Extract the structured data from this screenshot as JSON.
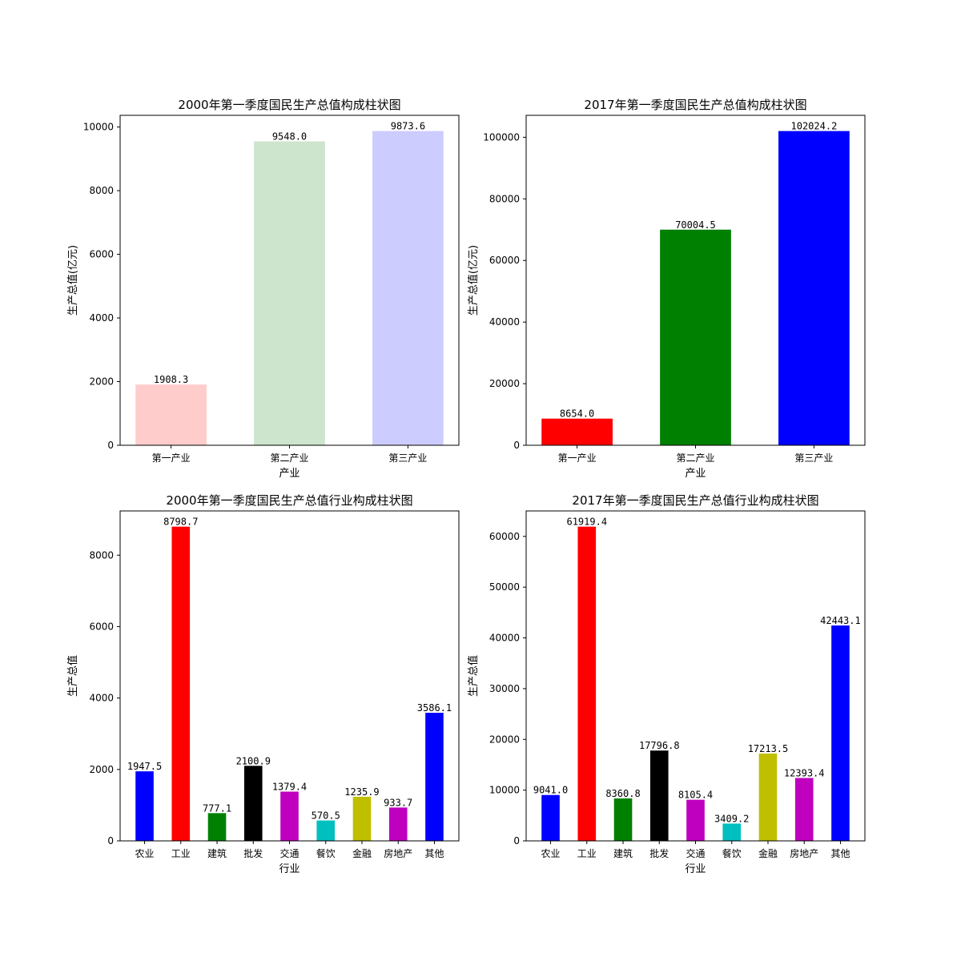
{
  "chart_data": [
    {
      "type": "bar",
      "title": "2000年第一季度国民生产总值构成柱状图",
      "xlabel": "产业",
      "ylabel": "生产总值(亿元)",
      "categories": [
        "第一产业",
        "第二产业",
        "第三产业"
      ],
      "values": [
        1908.3,
        9548.0,
        9873.6
      ],
      "data_labels": [
        "1908.3",
        "9548.0",
        "9873.6"
      ],
      "colors": [
        "#ffcccc",
        "#cce5cc",
        "#ccccff"
      ],
      "ylim": [
        0,
        10367
      ],
      "yticks": [
        0,
        2000,
        4000,
        6000,
        8000,
        10000
      ],
      "bar_width": 0.6
    },
    {
      "type": "bar",
      "title": "2017年第一季度国民生产总值构成柱状图",
      "xlabel": "产业",
      "ylabel": "生产总值(亿元)",
      "categories": [
        "第一产业",
        "第二产业",
        "第三产业"
      ],
      "values": [
        8654.0,
        70004.5,
        102024.2
      ],
      "data_labels": [
        "8654.0",
        "70004.5",
        "102024.2"
      ],
      "colors": [
        "#ff0000",
        "#008000",
        "#0000ff"
      ],
      "ylim": [
        0,
        107125
      ],
      "yticks": [
        0,
        20000,
        40000,
        60000,
        80000,
        100000
      ],
      "bar_width": 0.6
    },
    {
      "type": "bar",
      "title": "2000年第一季度国民生产总值行业构成柱状图",
      "xlabel": "行业",
      "ylabel": "生产总值",
      "categories": [
        "农业",
        "工业",
        "建筑",
        "批发",
        "交通",
        "餐饮",
        "金融",
        "房地产",
        "其他"
      ],
      "values": [
        1947.5,
        8798.7,
        777.1,
        2100.9,
        1379.4,
        570.5,
        1235.9,
        933.7,
        3586.1
      ],
      "data_labels": [
        "1947.5",
        "8798.7",
        "777.1",
        "2100.9",
        "1379.4",
        "570.5",
        "1235.9",
        "933.7",
        "3586.1"
      ],
      "colors": [
        "#0000ff",
        "#ff0000",
        "#008000",
        "#000000",
        "#bf00bf",
        "#00bfbf",
        "#bfbf00",
        "#bf00bf",
        "#0000ff"
      ],
      "ylim": [
        0,
        9239
      ],
      "yticks": [
        0,
        2000,
        4000,
        6000,
        8000
      ],
      "bar_width": 0.5
    },
    {
      "type": "bar",
      "title": "2017年第一季度国民生产总值行业构成柱状图",
      "xlabel": "行业",
      "ylabel": "生产总值",
      "categories": [
        "农业",
        "工业",
        "建筑",
        "批发",
        "交通",
        "餐饮",
        "金融",
        "房地产",
        "其他"
      ],
      "values": [
        9041.0,
        61919.4,
        8360.8,
        17796.8,
        8105.4,
        3409.2,
        17213.5,
        12393.4,
        42443.1
      ],
      "data_labels": [
        "9041.0",
        "61919.4",
        "8360.8",
        "17796.8",
        "8105.4",
        "3409.2",
        "17213.5",
        "12393.4",
        "42443.1"
      ],
      "colors": [
        "#0000ff",
        "#ff0000",
        "#008000",
        "#000000",
        "#bf00bf",
        "#00bfbf",
        "#bfbf00",
        "#bf00bf",
        "#0000ff"
      ],
      "ylim": [
        0,
        65015
      ],
      "yticks": [
        0,
        10000,
        20000,
        30000,
        40000,
        50000,
        60000
      ],
      "bar_width": 0.5
    }
  ]
}
